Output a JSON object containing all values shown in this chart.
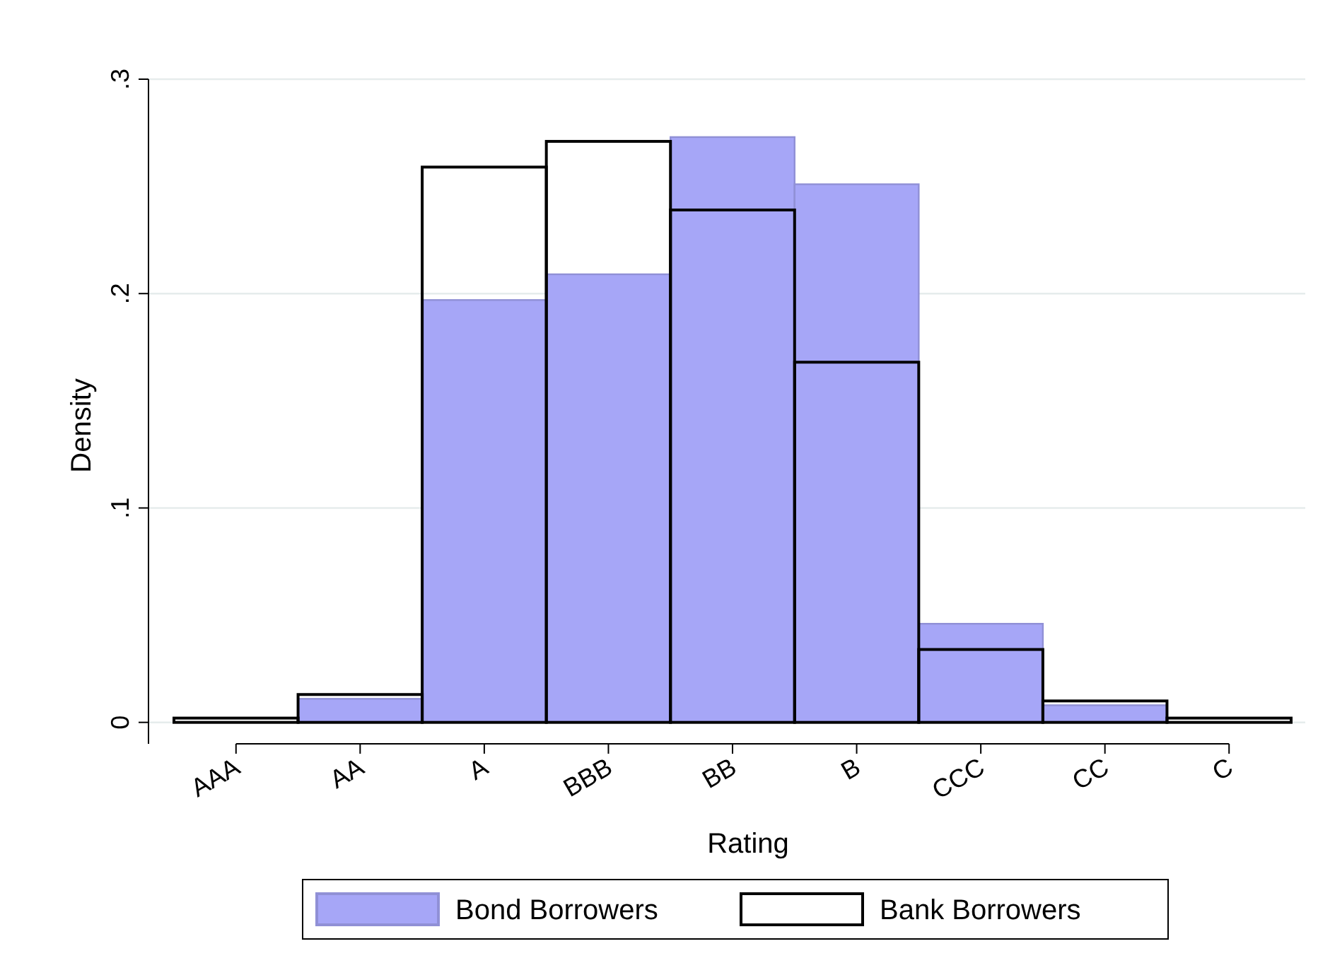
{
  "chart_data": {
    "type": "bar",
    "xlabel": "Rating",
    "ylabel": "Density",
    "categories": [
      "AAA",
      "AA",
      "A",
      "BBB",
      "BB",
      "B",
      "CCC",
      "CC",
      "C"
    ],
    "series": [
      {
        "name": "Bond Borrowers",
        "color": "#a6a6f7",
        "values": [
          null,
          0.011,
          0.197,
          0.209,
          0.273,
          0.251,
          0.046,
          0.008,
          null
        ]
      },
      {
        "name": "Bank Borrowers",
        "color": "#000000",
        "values": [
          0.002,
          0.013,
          0.259,
          0.271,
          0.239,
          0.168,
          0.034,
          0.01,
          0.002
        ]
      }
    ],
    "ylim": [
      -0.01,
      0.3
    ],
    "yticks": [
      {
        "value": 0,
        "label": "0"
      },
      {
        "value": 0.1,
        "label": ".1"
      },
      {
        "value": 0.2,
        "label": ".2"
      },
      {
        "value": 0.3,
        "label": ".3"
      }
    ],
    "grid": "y",
    "legend": "bottom"
  }
}
